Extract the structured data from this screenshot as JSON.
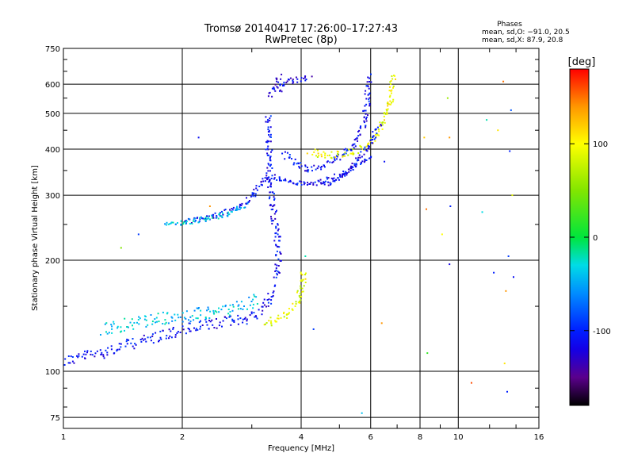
{
  "chart_data": {
    "type": "scatter",
    "title": "Tromsø 20140417 17:26:00–17:27:43",
    "subtitle": "RwPretec (8p)",
    "xlabel": "Frequency [MHz]",
    "ylabel": "Stationary phase Virtual Height [km]",
    "x_scale": "log",
    "y_scale": "log",
    "xlim": [
      1,
      16
    ],
    "ylim": [
      70,
      750
    ],
    "x_ticks": [
      1,
      2,
      4,
      6,
      8,
      10,
      16
    ],
    "x_tick_labels": [
      "1",
      "2",
      "4",
      "6",
      "8",
      "10",
      "16"
    ],
    "y_ticks": [
      75,
      100,
      200,
      300,
      400,
      500,
      600,
      750
    ],
    "y_tick_labels": [
      "75",
      "100",
      "200",
      "300",
      "400",
      "500",
      "600",
      "750"
    ],
    "grid": true,
    "phases_box": {
      "title": "Phases",
      "line1": "mean, sd,O: −91.0, 20.5",
      "line2": "mean, sd,X:  87.9, 20.8"
    },
    "colorbar": {
      "label": "[deg]",
      "min": -180,
      "max": 180,
      "ticks": [
        100,
        0,
        -100
      ],
      "tick_labels": [
        "100",
        "0",
        "-100"
      ],
      "colormap": "rainbow"
    },
    "traces": [
      {
        "name": "",
        "phase": -110,
        "jitter": 0.03,
        "points": [
          [
            1.0,
            107
          ],
          [
            1.1,
            110
          ],
          [
            1.25,
            113
          ],
          [
            1.4,
            117
          ],
          [
            1.6,
            122
          ],
          [
            1.8,
            126
          ],
          [
            2.0,
            130
          ],
          [
            2.3,
            134
          ],
          [
            2.6,
            137
          ],
          [
            2.9,
            140
          ],
          [
            3.1,
            145
          ],
          [
            3.3,
            155
          ],
          [
            3.4,
            170
          ]
        ]
      },
      {
        "name": "",
        "phase": -40,
        "jitter": 0.035,
        "points": [
          [
            1.25,
            130
          ],
          [
            1.4,
            134
          ],
          [
            1.6,
            137
          ],
          [
            1.8,
            139
          ],
          [
            2.0,
            141
          ],
          [
            2.3,
            144
          ],
          [
            2.6,
            148
          ],
          [
            2.9,
            153
          ],
          [
            3.1,
            160
          ]
        ]
      },
      {
        "name": "",
        "phase": 90,
        "jitter": 0.02,
        "points": [
          [
            3.2,
            135
          ],
          [
            3.5,
            139
          ],
          [
            3.7,
            145
          ],
          [
            3.9,
            155
          ],
          [
            4.0,
            170
          ],
          [
            4.05,
            190
          ]
        ]
      },
      {
        "name": "",
        "phase": -110,
        "jitter": 0.015,
        "points": [
          [
            3.45,
            180
          ],
          [
            3.5,
            210
          ],
          [
            3.45,
            240
          ],
          [
            3.4,
            265
          ],
          [
            3.35,
            300
          ],
          [
            3.3,
            350
          ],
          [
            3.3,
            400
          ],
          [
            3.3,
            450
          ],
          [
            3.3,
            500
          ]
        ]
      },
      {
        "name": "",
        "phase": -120,
        "jitter": 0.02,
        "points": [
          [
            3.3,
            560
          ],
          [
            3.4,
            580
          ],
          [
            3.5,
            600
          ],
          [
            3.5,
            640
          ]
        ]
      },
      {
        "name": "",
        "phase": -110,
        "jitter": 0.012,
        "points": [
          [
            2.0,
            255
          ],
          [
            2.3,
            262
          ],
          [
            2.6,
            272
          ],
          [
            2.9,
            290
          ],
          [
            3.0,
            300
          ],
          [
            3.1,
            315
          ],
          [
            3.3,
            340
          ],
          [
            3.7,
            328
          ],
          [
            4.1,
            322
          ],
          [
            4.6,
            330
          ],
          [
            5.2,
            348
          ],
          [
            5.6,
            365
          ],
          [
            6.0,
            390
          ]
        ]
      },
      {
        "name": "",
        "phase": -40,
        "jitter": 0.012,
        "points": [
          [
            1.8,
            250
          ],
          [
            2.2,
            258
          ],
          [
            2.6,
            268
          ],
          [
            2.9,
            285
          ]
        ]
      },
      {
        "name": "",
        "phase": -110,
        "jitter": 0.015,
        "points": [
          [
            3.6,
            390
          ],
          [
            3.9,
            365
          ],
          [
            4.2,
            355
          ],
          [
            4.6,
            365
          ],
          [
            5.0,
            385
          ],
          [
            5.4,
            415
          ],
          [
            5.7,
            460
          ],
          [
            5.85,
            540
          ],
          [
            5.9,
            640
          ]
        ]
      },
      {
        "name": "",
        "phase": 95,
        "jitter": 0.018,
        "points": [
          [
            4.2,
            395
          ],
          [
            4.6,
            385
          ],
          [
            5.0,
            390
          ],
          [
            5.5,
            400
          ],
          [
            6.0,
            420
          ],
          [
            6.4,
            470
          ],
          [
            6.7,
            540
          ],
          [
            6.8,
            640
          ]
        ]
      },
      {
        "name": "",
        "phase": -110,
        "jitter": 0.01,
        "points": [
          [
            4.6,
            320
          ],
          [
            5.2,
            348
          ],
          [
            5.6,
            380
          ],
          [
            6.0,
            420
          ],
          [
            6.3,
            470
          ]
        ]
      },
      {
        "name": "",
        "phase": -120,
        "jitter": 0.02,
        "points": [
          [
            3.5,
            580
          ],
          [
            3.8,
            620
          ],
          [
            4.2,
            630
          ]
        ]
      }
    ],
    "scatter_points": [
      {
        "x": 1.4,
        "y": 216,
        "phase": 50
      },
      {
        "x": 1.55,
        "y": 235,
        "phase": -90
      },
      {
        "x": 2.2,
        "y": 430,
        "phase": -110
      },
      {
        "x": 2.35,
        "y": 280,
        "phase": 140
      },
      {
        "x": 4.1,
        "y": 205,
        "phase": -20
      },
      {
        "x": 4.3,
        "y": 130,
        "phase": -90
      },
      {
        "x": 5.7,
        "y": 77,
        "phase": -40
      },
      {
        "x": 6.4,
        "y": 135,
        "phase": 140
      },
      {
        "x": 6.5,
        "y": 370,
        "phase": -110
      },
      {
        "x": 8.2,
        "y": 430,
        "phase": 120
      },
      {
        "x": 8.3,
        "y": 275,
        "phase": 150
      },
      {
        "x": 8.35,
        "y": 112,
        "phase": 20
      },
      {
        "x": 9.1,
        "y": 235,
        "phase": 100
      },
      {
        "x": 9.4,
        "y": 550,
        "phase": 60
      },
      {
        "x": 9.5,
        "y": 430,
        "phase": 140
      },
      {
        "x": 9.55,
        "y": 280,
        "phase": -100
      },
      {
        "x": 9.5,
        "y": 195,
        "phase": -120
      },
      {
        "x": 10.8,
        "y": 93,
        "phase": 160
      },
      {
        "x": 11.5,
        "y": 270,
        "phase": -30
      },
      {
        "x": 11.8,
        "y": 480,
        "phase": -20
      },
      {
        "x": 12.3,
        "y": 185,
        "phase": -100
      },
      {
        "x": 12.6,
        "y": 450,
        "phase": 110
      },
      {
        "x": 13.0,
        "y": 610,
        "phase": 150
      },
      {
        "x": 13.1,
        "y": 105,
        "phase": 110
      },
      {
        "x": 13.2,
        "y": 165,
        "phase": 140
      },
      {
        "x": 13.3,
        "y": 88,
        "phase": -100
      },
      {
        "x": 13.4,
        "y": 205,
        "phase": -90
      },
      {
        "x": 13.5,
        "y": 395,
        "phase": -100
      },
      {
        "x": 13.6,
        "y": 510,
        "phase": -80
      },
      {
        "x": 13.7,
        "y": 300,
        "phase": 90
      },
      {
        "x": 13.8,
        "y": 180,
        "phase": -110
      }
    ]
  }
}
